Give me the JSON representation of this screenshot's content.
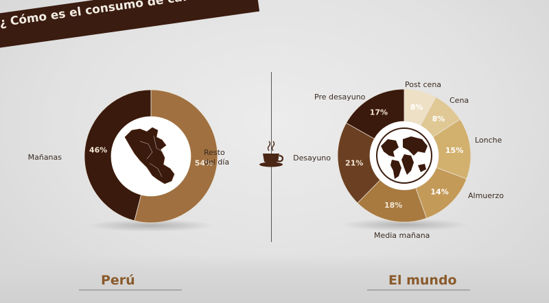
{
  "header": {
    "title": "¿ Cómo es el consumo de cafés en Perú?"
  },
  "footer": {
    "left_label": "Perú",
    "right_label": "El mundo"
  },
  "chart_data": [
    {
      "type": "pie",
      "variant": "donut",
      "name": "Perú",
      "slices": [
        {
          "label": "Mañanas",
          "value": 54,
          "display": "54%",
          "color": "#a07040"
        },
        {
          "label": "Resto del día",
          "value": 46,
          "display": "46%",
          "color": "#3a1a0c"
        }
      ],
      "center_icon": "peru-map-icon"
    },
    {
      "type": "pie",
      "variant": "donut",
      "name": "El mundo",
      "slices": [
        {
          "label": "Post cena",
          "value": 8,
          "display": "8%",
          "color": "#eee0c5"
        },
        {
          "label": "Cena",
          "value": 8,
          "display": "8%",
          "color": "#e0c894"
        },
        {
          "label": "Lonche",
          "value": 15,
          "display": "15%",
          "color": "#d2b06e"
        },
        {
          "label": "Almuerzo",
          "value": 14,
          "display": "14%",
          "color": "#c49a58"
        },
        {
          "label": "Media mañana",
          "value": 18,
          "display": "18%",
          "color": "#a87a40"
        },
        {
          "label": "Desayuno",
          "value": 21,
          "display": "21%",
          "color": "#6b3f22"
        },
        {
          "label": "Pre desayuno",
          "value": 17,
          "display": "17%",
          "color": "#3a1a0c"
        }
      ],
      "center_icon": "world-map-icon"
    }
  ],
  "icons": {
    "divider_icon": "coffee-cup-icon"
  }
}
